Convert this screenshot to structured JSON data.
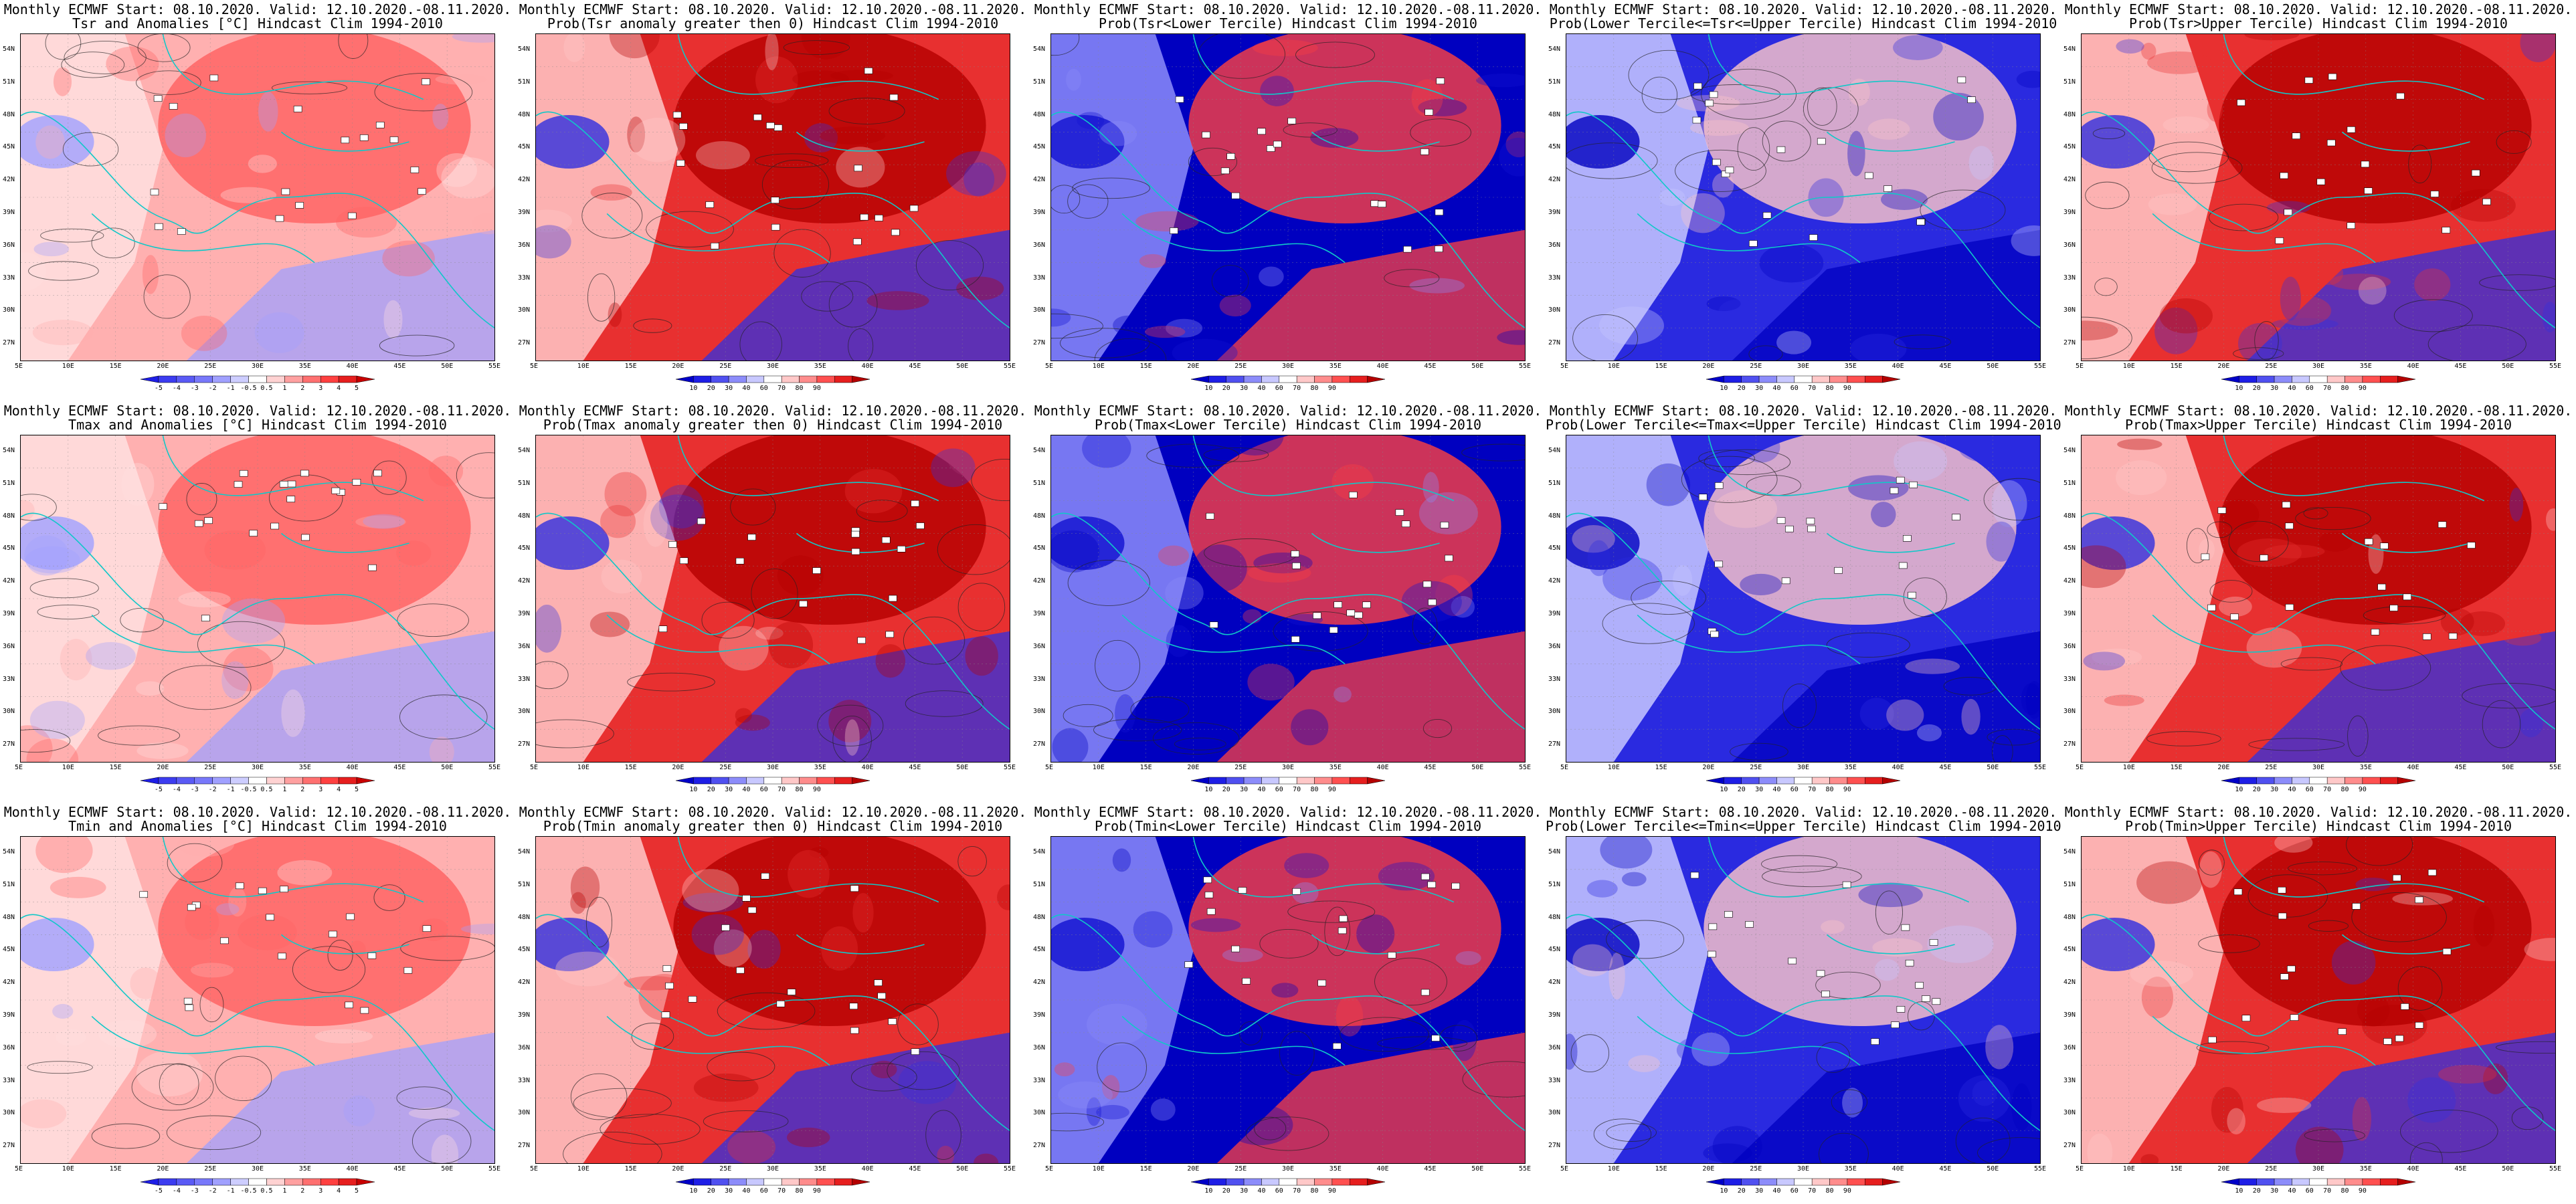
{
  "panels": [
    {
      "row": 0,
      "col": 0,
      "title1": "Monthly ECMWF Start: 08.10.2020. Valid: 12.10.2020.-08.11.2020.",
      "title2": "Tsr and Anomalies [°C] Hindcast Clim 1994-2010",
      "kind": "anom"
    },
    {
      "row": 0,
      "col": 1,
      "title1": "Monthly ECMWF Start: 08.10.2020. Valid: 12.10.2020.-08.11.2020.",
      "title2": "Prob(Tsr anomaly greater then 0) Hindcast Clim 1994-2010",
      "kind": "prob_hot"
    },
    {
      "row": 0,
      "col": 2,
      "title1": "Monthly ECMWF Start: 08.10.2020. Valid: 12.10.2020.-08.11.2020.",
      "title2": "Prob(Tsr<Lower Tercile) Hindcast Clim 1994-2010",
      "kind": "prob_cold"
    },
    {
      "row": 0,
      "col": 3,
      "title1": "Monthly ECMWF Start: 08.10.2020. Valid: 12.10.2020.-08.11.2020.",
      "title2": "Prob(Lower Tercile<=Tsr<=Upper Tercile) Hindcast Clim 1994-2010",
      "kind": "prob_mid"
    },
    {
      "row": 0,
      "col": 4,
      "title1": "Monthly ECMWF Start: 08.10.2020. Valid: 12.10.2020.-08.11.2020.",
      "title2": "Prob(Tsr>Upper Tercile) Hindcast Clim 1994-2010",
      "kind": "prob_hot"
    },
    {
      "row": 1,
      "col": 0,
      "title1": "Monthly ECMWF Start: 08.10.2020. Valid: 12.10.2020.-08.11.2020.",
      "title2": "Tmax and Anomalies [°C] Hindcast Clim 1994-2010",
      "kind": "anom"
    },
    {
      "row": 1,
      "col": 1,
      "title1": "Monthly ECMWF Start: 08.10.2020. Valid: 12.10.2020.-08.11.2020.",
      "title2": "Prob(Tmax anomaly greater then 0) Hindcast Clim 1994-2010",
      "kind": "prob_hot"
    },
    {
      "row": 1,
      "col": 2,
      "title1": "Monthly ECMWF Start: 08.10.2020. Valid: 12.10.2020.-08.11.2020.",
      "title2": "Prob(Tmax<Lower Tercile) Hindcast Clim 1994-2010",
      "kind": "prob_cold"
    },
    {
      "row": 1,
      "col": 3,
      "title1": "Monthly ECMWF Start: 08.10.2020. Valid: 12.10.2020.-08.11.2020.",
      "title2": "Prob(Lower Tercile<=Tmax<=Upper Tercile) Hindcast Clim 1994-2010",
      "kind": "prob_mid"
    },
    {
      "row": 1,
      "col": 4,
      "title1": "Monthly ECMWF Start: 08.10.2020. Valid: 12.10.2020.-08.11.2020.",
      "title2": "Prob(Tmax>Upper Tercile) Hindcast Clim 1994-2010",
      "kind": "prob_hot"
    },
    {
      "row": 2,
      "col": 0,
      "title1": "Monthly ECMWF Start: 08.10.2020. Valid: 12.10.2020.-08.11.2020.",
      "title2": "Tmin and Anomalies [°C] Hindcast Clim 1994-2010",
      "kind": "anom"
    },
    {
      "row": 2,
      "col": 1,
      "title1": "Monthly ECMWF Start: 08.10.2020. Valid: 12.10.2020.-08.11.2020.",
      "title2": "Prob(Tmin anomaly greater then 0) Hindcast Clim 1994-2010",
      "kind": "prob_hot"
    },
    {
      "row": 2,
      "col": 2,
      "title1": "Monthly ECMWF Start: 08.10.2020. Valid: 12.10.2020.-08.11.2020.",
      "title2": "Prob(Tmin<Lower Tercile) Hindcast Clim 1994-2010",
      "kind": "prob_cold"
    },
    {
      "row": 2,
      "col": 3,
      "title1": "Monthly ECMWF Start: 08.10.2020. Valid: 12.10.2020.-08.11.2020.",
      "title2": "Prob(Lower Tercile<=Tmin<=Upper Tercile) Hindcast Clim 1994-2010",
      "kind": "prob_mid"
    },
    {
      "row": 2,
      "col": 4,
      "title1": "Monthly ECMWF Start: 08.10.2020. Valid: 12.10.2020.-08.11.2020.",
      "title2": "Prob(Tmin>Upper Tercile) Hindcast Clim 1994-2010",
      "kind": "prob_hot"
    }
  ],
  "lat_labels": [
    "54N",
    "51N",
    "48N",
    "45N",
    "42N",
    "39N",
    "36N",
    "33N",
    "30N",
    "27N"
  ],
  "lon_labels": [
    "5E",
    "10E",
    "15E",
    "20E",
    "25E",
    "30E",
    "35E",
    "40E",
    "45E",
    "50E",
    "55E"
  ],
  "anom_colorbar": {
    "labels": [
      "-5",
      "-4",
      "-3",
      "-2",
      "-1",
      "-0.5",
      "0.5",
      "1",
      "2",
      "3",
      "4",
      "5"
    ],
    "colors": [
      "#1e1ee6",
      "#3c3cf0",
      "#5a5af5",
      "#7878fa",
      "#a0a0ff",
      "#cdcdff",
      "#ffffff",
      "#ffd2d2",
      "#ffa0a0",
      "#ff7070",
      "#ff4040",
      "#e61e1e",
      "#c80000"
    ]
  },
  "prob_colorbar": {
    "labels": [
      "10",
      "20",
      "30",
      "40",
      "60",
      "70",
      "80",
      "90"
    ],
    "colors": [
      "#0000c8",
      "#1e1ee6",
      "#5050f0",
      "#8c8cfa",
      "#c8c8ff",
      "#ffffff",
      "#ffc8c8",
      "#ff8c8c",
      "#ff5050",
      "#e61e1e",
      "#b40000"
    ]
  }
}
